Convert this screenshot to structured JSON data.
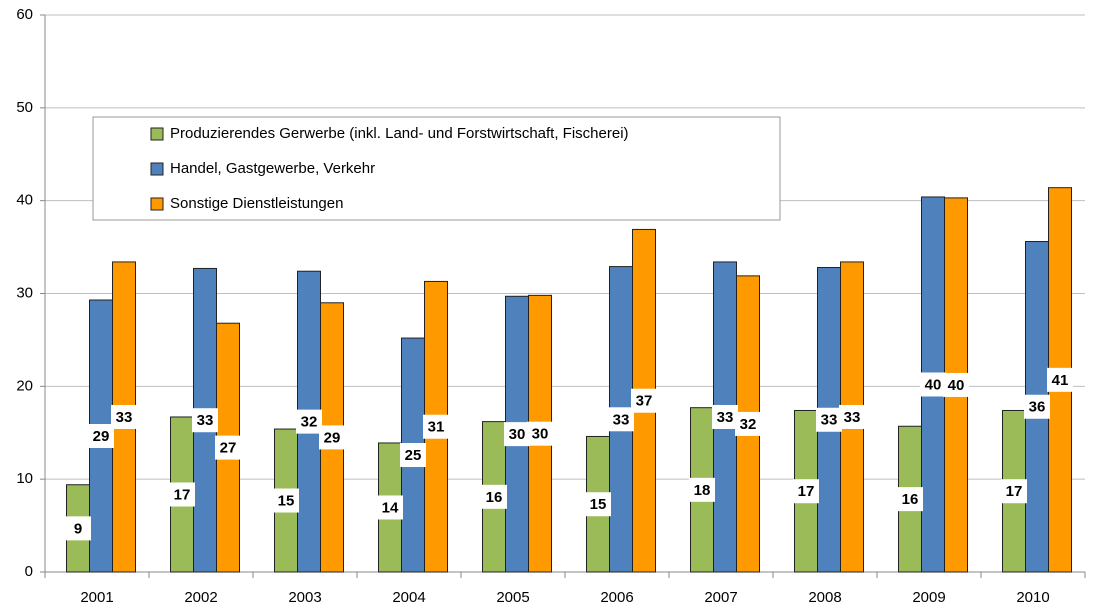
{
  "chart_data": {
    "type": "bar",
    "categories": [
      "2001",
      "2002",
      "2003",
      "2004",
      "2005",
      "2006",
      "2007",
      "2008",
      "2009",
      "2010"
    ],
    "series": [
      {
        "name": "Produzierendes Gerwerbe (inkl. Land- und Forstwirtschaft, Fischerei)",
        "color": "#9bbb59",
        "values": [
          9.4,
          16.7,
          15.4,
          13.9,
          16.2,
          14.6,
          17.7,
          17.4,
          15.7,
          17.4
        ],
        "value_labels": [
          "9",
          "17",
          "15",
          "14",
          "16",
          "15",
          "18",
          "17",
          "16",
          "17"
        ]
      },
      {
        "name": "Handel, Gastgewerbe, Verkehr",
        "color": "#4f81bd",
        "values": [
          29.3,
          32.7,
          32.4,
          25.2,
          29.7,
          32.9,
          33.4,
          32.8,
          40.4,
          35.6
        ],
        "value_labels": [
          "29",
          "33",
          "32",
          "25",
          "30",
          "33",
          "33",
          "33",
          "40",
          "36"
        ]
      },
      {
        "name": "Sonstige Dienstleistungen",
        "color": "#ff9900",
        "values": [
          33.4,
          26.8,
          29.0,
          31.3,
          29.8,
          36.9,
          31.9,
          33.4,
          40.3,
          41.4
        ],
        "value_labels": [
          "33",
          "27",
          "29",
          "31",
          "30",
          "37",
          "32",
          "33",
          "40",
          "41"
        ]
      }
    ],
    "ylim": [
      0,
      60
    ],
    "yticks": [
      0,
      10,
      20,
      30,
      40,
      50,
      60
    ],
    "grid": true,
    "legend": "top-left"
  }
}
